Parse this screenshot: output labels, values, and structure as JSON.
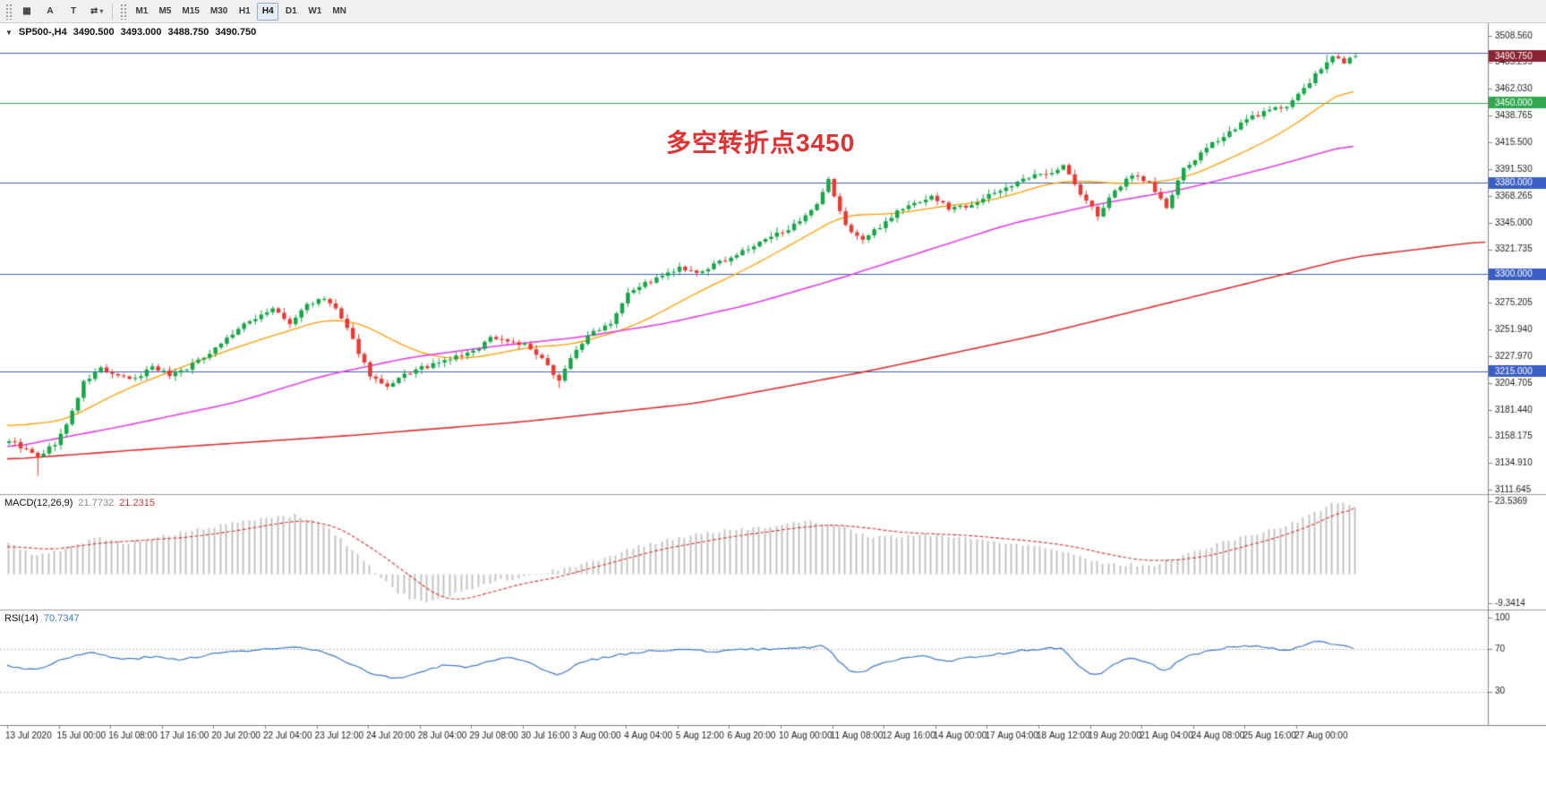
{
  "toolbar": {
    "tools": [
      {
        "name": "chart-grid",
        "glyph": "▦"
      },
      {
        "name": "text-a",
        "glyph": "A"
      },
      {
        "name": "text-t",
        "glyph": "T"
      },
      {
        "name": "scale-cycle",
        "glyph": "⇄",
        "caret": "▾"
      }
    ],
    "timeframes": [
      "M1",
      "M5",
      "M15",
      "M30",
      "H1",
      "H4",
      "D1",
      "W1",
      "MN"
    ],
    "active_timeframe": "H4"
  },
  "info_bar": {
    "collapse_icon": "▼",
    "symbol_period": "SP500-,H4",
    "open": "3490.500",
    "high": "3493.000",
    "low": "3488.750",
    "close": "3490.750"
  },
  "annotation": {
    "text": "多空转折点3450",
    "color": "#e03232"
  },
  "indicators": {
    "macd": {
      "label": "MACD(12,26,9)",
      "main_value": "21.7732",
      "signal_value": "21.2315"
    },
    "rsi": {
      "label": "RSI(14)",
      "value": "70.7347"
    }
  },
  "chart_data": {
    "type": "candlestick",
    "symbol": "SP500-",
    "period": "H4",
    "title": "SP500-,H4",
    "bar_count": 236,
    "bars_per_label": 9,
    "price_range": [
      3111.645,
      3508.56
    ],
    "ohlc_current": {
      "open": 3490.5,
      "high": 3493.0,
      "low": 3488.75,
      "close": 3490.75
    },
    "candle_up": "#17a648",
    "candle_down": "#e63c35",
    "price_axis_ticks": [
      "3508.560",
      "3485.295",
      "3462.030",
      "3438.765",
      "3415.500",
      "3391.530",
      "3368.265",
      "3345.000",
      "3321.735",
      "3298.470",
      "3275.205",
      "3251.940",
      "3227.970",
      "3204.705",
      "3181.440",
      "3158.175",
      "3134.910",
      "3111.645"
    ],
    "time_axis_labels": [
      "13 Jul 2020",
      "15 Jul 00:00",
      "16 Jul 08:00",
      "17 Jul 16:00",
      "20 Jul 20:00",
      "22 Jul 04:00",
      "23 Jul 12:00",
      "24 Jul 20:00",
      "28 Jul 04:00",
      "29 Jul 08:00",
      "30 Jul 16:00",
      "3 Aug 00:00",
      "4 Aug 04:00",
      "5 Aug 12:00",
      "6 Aug 20:00",
      "10 Aug 00:00",
      "11 Aug 08:00",
      "12 Aug 16:00",
      "14 Aug 00:00",
      "17 Aug 04:00",
      "18 Aug 12:00",
      "19 Aug 20:00",
      "21 Aug 04:00",
      "24 Aug 08:00",
      "25 Aug 16:00",
      "27 Aug 00:00"
    ],
    "horizontal_lines": [
      {
        "price": 3493.5,
        "color": "#3a5fc4",
        "label": null
      },
      {
        "price": 3450.0,
        "color": "#2fa84f",
        "label": "3450.000"
      },
      {
        "price": 3380.0,
        "color": "#3a5fc4",
        "label": "3380.000"
      },
      {
        "price": 3300.0,
        "color": "#3a5fc4",
        "label": "3300.000"
      },
      {
        "price": 3215.0,
        "color": "#3a5fc4",
        "label": "3215.000"
      }
    ],
    "current_price": {
      "value": 3490.75,
      "label": "3490.750",
      "bg": "#8b2332"
    },
    "close_keypoints": [
      [
        0,
        3155
      ],
      [
        3,
        3146
      ],
      [
        5,
        3140
      ],
      [
        8,
        3152
      ],
      [
        10,
        3168
      ],
      [
        13,
        3205
      ],
      [
        16,
        3218
      ],
      [
        19,
        3210
      ],
      [
        22,
        3208
      ],
      [
        25,
        3220
      ],
      [
        28,
        3212
      ],
      [
        31,
        3218
      ],
      [
        34,
        3228
      ],
      [
        37,
        3240
      ],
      [
        40,
        3252
      ],
      [
        43,
        3262
      ],
      [
        46,
        3270
      ],
      [
        49,
        3256
      ],
      [
        52,
        3274
      ],
      [
        55,
        3278
      ],
      [
        57,
        3270
      ],
      [
        60,
        3242
      ],
      [
        63,
        3212
      ],
      [
        66,
        3200
      ],
      [
        69,
        3212
      ],
      [
        72,
        3218
      ],
      [
        75,
        3222
      ],
      [
        78,
        3228
      ],
      [
        81,
        3232
      ],
      [
        84,
        3245
      ],
      [
        87,
        3242
      ],
      [
        90,
        3238
      ],
      [
        93,
        3225
      ],
      [
        96,
        3208
      ],
      [
        99,
        3235
      ],
      [
        102,
        3250
      ],
      [
        105,
        3258
      ],
      [
        108,
        3285
      ],
      [
        111,
        3292
      ],
      [
        114,
        3298
      ],
      [
        117,
        3305
      ],
      [
        120,
        3300
      ],
      [
        123,
        3308
      ],
      [
        126,
        3315
      ],
      [
        129,
        3322
      ],
      [
        132,
        3330
      ],
      [
        135,
        3338
      ],
      [
        138,
        3345
      ],
      [
        141,
        3360
      ],
      [
        143,
        3382
      ],
      [
        146,
        3342
      ],
      [
        149,
        3330
      ],
      [
        152,
        3342
      ],
      [
        155,
        3355
      ],
      [
        158,
        3362
      ],
      [
        161,
        3368
      ],
      [
        164,
        3358
      ],
      [
        167,
        3360
      ],
      [
        170,
        3366
      ],
      [
        173,
        3374
      ],
      [
        176,
        3380
      ],
      [
        179,
        3386
      ],
      [
        182,
        3390
      ],
      [
        184,
        3395
      ],
      [
        187,
        3370
      ],
      [
        190,
        3352
      ],
      [
        193,
        3372
      ],
      [
        196,
        3388
      ],
      [
        199,
        3380
      ],
      [
        202,
        3358
      ],
      [
        205,
        3392
      ],
      [
        208,
        3405
      ],
      [
        211,
        3418
      ],
      [
        214,
        3428
      ],
      [
        217,
        3438
      ],
      [
        220,
        3443
      ],
      [
        223,
        3448
      ],
      [
        226,
        3462
      ],
      [
        229,
        3480
      ],
      [
        231,
        3490
      ],
      [
        233,
        3486
      ],
      [
        235,
        3490.75
      ]
    ],
    "wick_spikes": [
      {
        "bar": 5,
        "delta": -14
      },
      {
        "bar": 96,
        "delta": -6
      },
      {
        "bar": 230,
        "delta": 6
      }
    ],
    "moving_averages": [
      {
        "name": "fast-ma",
        "color": "#ff9d00",
        "width": 1.3,
        "bars": 236,
        "keypoints": [
          [
            0,
            3167
          ],
          [
            10,
            3172
          ],
          [
            20,
            3198
          ],
          [
            30,
            3218
          ],
          [
            40,
            3236
          ],
          [
            50,
            3252
          ],
          [
            56,
            3261
          ],
          [
            62,
            3257
          ],
          [
            68,
            3240
          ],
          [
            74,
            3228
          ],
          [
            80,
            3226
          ],
          [
            86,
            3231
          ],
          [
            92,
            3237
          ],
          [
            98,
            3238
          ],
          [
            104,
            3246
          ],
          [
            110,
            3256
          ],
          [
            116,
            3272
          ],
          [
            122,
            3288
          ],
          [
            128,
            3302
          ],
          [
            134,
            3318
          ],
          [
            140,
            3335
          ],
          [
            146,
            3352
          ],
          [
            152,
            3352
          ],
          [
            158,
            3355
          ],
          [
            164,
            3360
          ],
          [
            170,
            3363
          ],
          [
            176,
            3370
          ],
          [
            182,
            3380
          ],
          [
            188,
            3382
          ],
          [
            194,
            3379
          ],
          [
            200,
            3380
          ],
          [
            206,
            3385
          ],
          [
            212,
            3398
          ],
          [
            218,
            3412
          ],
          [
            224,
            3428
          ],
          [
            230,
            3450
          ],
          [
            235,
            3464
          ]
        ]
      },
      {
        "name": "mid-ma",
        "color": "#e540e5",
        "width": 1.6,
        "bars": 236,
        "keypoints": [
          [
            0,
            3148
          ],
          [
            20,
            3167
          ],
          [
            40,
            3188
          ],
          [
            55,
            3211
          ],
          [
            70,
            3227
          ],
          [
            85,
            3237
          ],
          [
            100,
            3245
          ],
          [
            115,
            3257
          ],
          [
            130,
            3274
          ],
          [
            145,
            3296
          ],
          [
            160,
            3320
          ],
          [
            175,
            3344
          ],
          [
            190,
            3361
          ],
          [
            205,
            3374
          ],
          [
            220,
            3393
          ],
          [
            235,
            3414
          ]
        ]
      },
      {
        "name": "slow-ma",
        "color": "#e03030",
        "width": 1.6,
        "bars": 259,
        "keypoints": [
          [
            0,
            3138
          ],
          [
            30,
            3149
          ],
          [
            60,
            3159
          ],
          [
            90,
            3171
          ],
          [
            120,
            3187
          ],
          [
            150,
            3215
          ],
          [
            180,
            3247
          ],
          [
            210,
            3284
          ],
          [
            235,
            3315
          ],
          [
            258,
            3329
          ]
        ]
      }
    ],
    "macd": {
      "hist_color": "#c4c4c4",
      "signal_color": "#d23b3b",
      "axis_max": 23.5369,
      "axis_min": -9.3414,
      "axis_ticks": [
        "23.5369",
        "-9.3414"
      ],
      "hist_keypoints": [
        [
          0,
          10
        ],
        [
          5,
          6
        ],
        [
          10,
          8
        ],
        [
          15,
          12
        ],
        [
          20,
          10
        ],
        [
          26,
          12
        ],
        [
          32,
          14
        ],
        [
          38,
          16
        ],
        [
          44,
          18
        ],
        [
          50,
          19
        ],
        [
          55,
          16
        ],
        [
          60,
          8
        ],
        [
          64,
          1
        ],
        [
          68,
          -6
        ],
        [
          72,
          -9
        ],
        [
          76,
          -8
        ],
        [
          80,
          -5
        ],
        [
          85,
          -2
        ],
        [
          90,
          -1
        ],
        [
          95,
          1
        ],
        [
          100,
          3
        ],
        [
          105,
          6
        ],
        [
          110,
          9
        ],
        [
          115,
          11
        ],
        [
          120,
          13
        ],
        [
          125,
          14
        ],
        [
          130,
          15
        ],
        [
          135,
          16
        ],
        [
          140,
          17
        ],
        [
          145,
          16
        ],
        [
          150,
          12
        ],
        [
          155,
          12
        ],
        [
          160,
          13
        ],
        [
          165,
          12
        ],
        [
          170,
          11
        ],
        [
          175,
          10
        ],
        [
          180,
          9
        ],
        [
          185,
          7
        ],
        [
          190,
          4
        ],
        [
          195,
          3
        ],
        [
          200,
          3
        ],
        [
          205,
          6
        ],
        [
          210,
          9
        ],
        [
          215,
          12
        ],
        [
          220,
          14
        ],
        [
          225,
          17
        ],
        [
          229,
          21
        ],
        [
          232,
          23.4
        ],
        [
          235,
          21.8
        ]
      ],
      "signal_keypoints": [
        [
          0,
          9
        ],
        [
          8,
          8
        ],
        [
          16,
          10
        ],
        [
          24,
          11
        ],
        [
          32,
          12
        ],
        [
          40,
          14
        ],
        [
          46,
          16
        ],
        [
          52,
          17.5
        ],
        [
          58,
          15
        ],
        [
          64,
          8
        ],
        [
          70,
          0
        ],
        [
          75,
          -7
        ],
        [
          79,
          -8.5
        ],
        [
          84,
          -6
        ],
        [
          90,
          -3
        ],
        [
          96,
          -1
        ],
        [
          102,
          2
        ],
        [
          108,
          5
        ],
        [
          114,
          8
        ],
        [
          120,
          10
        ],
        [
          126,
          12
        ],
        [
          132,
          13.5
        ],
        [
          138,
          15
        ],
        [
          144,
          16
        ],
        [
          150,
          15
        ],
        [
          156,
          13.5
        ],
        [
          162,
          13
        ],
        [
          168,
          12.5
        ],
        [
          174,
          11.5
        ],
        [
          180,
          10.5
        ],
        [
          186,
          9
        ],
        [
          192,
          6.5
        ],
        [
          198,
          4.5
        ],
        [
          204,
          4.5
        ],
        [
          210,
          6
        ],
        [
          216,
          9
        ],
        [
          222,
          12
        ],
        [
          228,
          16
        ],
        [
          232,
          19.5
        ],
        [
          235,
          21.2
        ]
      ]
    },
    "rsi": {
      "color": "#3e79c7",
      "levels": [
        70,
        30
      ],
      "axis_ticks": [
        "100",
        "70",
        "30"
      ],
      "keypoints": [
        [
          0,
          55
        ],
        [
          5,
          50
        ],
        [
          10,
          62
        ],
        [
          15,
          67
        ],
        [
          20,
          60
        ],
        [
          25,
          63
        ],
        [
          30,
          60
        ],
        [
          35,
          65
        ],
        [
          40,
          68
        ],
        [
          45,
          70
        ],
        [
          50,
          72
        ],
        [
          55,
          68
        ],
        [
          60,
          55
        ],
        [
          65,
          45
        ],
        [
          68,
          42
        ],
        [
          72,
          48
        ],
        [
          76,
          55
        ],
        [
          80,
          53
        ],
        [
          84,
          58
        ],
        [
          88,
          62
        ],
        [
          92,
          55
        ],
        [
          96,
          44
        ],
        [
          100,
          58
        ],
        [
          104,
          62
        ],
        [
          108,
          66
        ],
        [
          112,
          68
        ],
        [
          116,
          70
        ],
        [
          120,
          69
        ],
        [
          124,
          68
        ],
        [
          128,
          70
        ],
        [
          132,
          70
        ],
        [
          136,
          71
        ],
        [
          140,
          72
        ],
        [
          143,
          74
        ],
        [
          146,
          52
        ],
        [
          149,
          48
        ],
        [
          152,
          55
        ],
        [
          156,
          62
        ],
        [
          160,
          65
        ],
        [
          164,
          58
        ],
        [
          168,
          62
        ],
        [
          172,
          65
        ],
        [
          176,
          68
        ],
        [
          180,
          70
        ],
        [
          184,
          72
        ],
        [
          188,
          50
        ],
        [
          190,
          43
        ],
        [
          193,
          55
        ],
        [
          196,
          62
        ],
        [
          199,
          58
        ],
        [
          202,
          48
        ],
        [
          205,
          62
        ],
        [
          208,
          66
        ],
        [
          211,
          70
        ],
        [
          214,
          72
        ],
        [
          217,
          73
        ],
        [
          220,
          72
        ],
        [
          223,
          68
        ],
        [
          226,
          73
        ],
        [
          229,
          78
        ],
        [
          231,
          74
        ],
        [
          233,
          76
        ],
        [
          235,
          70.7347
        ]
      ]
    }
  }
}
